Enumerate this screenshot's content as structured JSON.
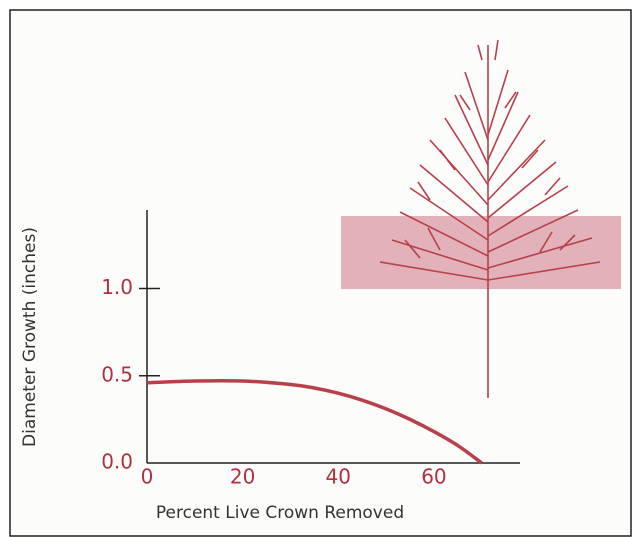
{
  "chart_data": {
    "type": "line",
    "x_label": "Percent Live Crown Removed",
    "y_label": "Diameter Growth (inches)",
    "x": [
      0,
      10,
      20,
      30,
      35,
      40,
      45,
      50,
      55,
      60,
      65,
      70
    ],
    "values": [
      0.46,
      0.47,
      0.47,
      0.45,
      0.43,
      0.4,
      0.36,
      0.31,
      0.25,
      0.18,
      0.1,
      0
    ],
    "color": "#b8404a",
    "xlim": [
      0,
      78
    ],
    "xticks": [
      0,
      20,
      40,
      60
    ],
    "ylim": [
      0,
      1.45
    ],
    "yticks": [
      {
        "value": 0,
        "label": "0.0"
      },
      0.5,
      {
        "value": 1,
        "label": "1.0"
      }
    ],
    "grid": false
  }
}
